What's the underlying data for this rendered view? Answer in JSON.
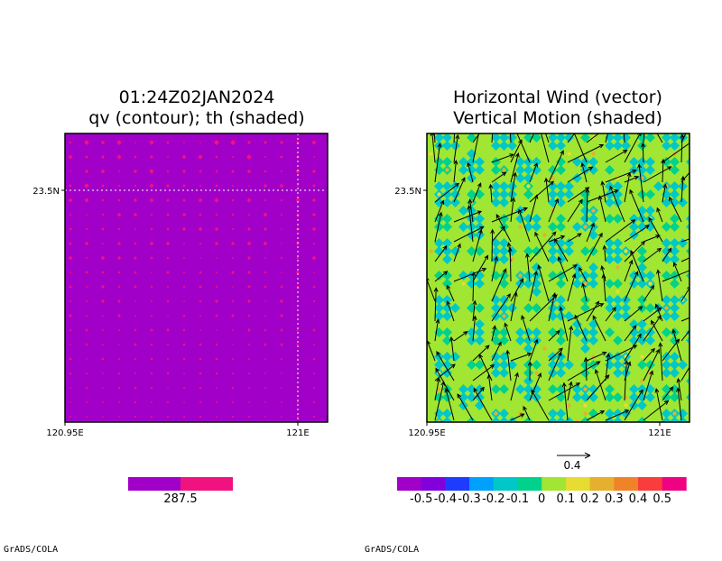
{
  "credits": [
    "GrADS/COLA",
    "GrADS/COLA"
  ],
  "chart_data": [
    {
      "type": "heatmap",
      "title_lines": [
        "01:24Z02JAN2024",
        "qv (contour); th (shaded)"
      ],
      "x_ticks": [
        {
          "value": 120.95,
          "label": "120.95E"
        },
        {
          "value": 121.0,
          "label": "121E"
        }
      ],
      "y_ticks": [
        {
          "value": 23.5,
          "label": "23.5N"
        }
      ],
      "xlim": [
        120.95,
        121.005
      ],
      "ylim": [
        23.44,
        23.52
      ],
      "grid": "dotted",
      "colorbar": {
        "colors": [
          "#a000c8",
          "#f0127f"
        ],
        "labels": [
          "287.5"
        ]
      }
    },
    {
      "type": "heatmap",
      "title_lines": [
        "Horizontal Wind (vector)",
        "Vertical Motion (shaded)"
      ],
      "x_ticks": [
        {
          "value": 120.95,
          "label": "120.95E"
        },
        {
          "value": 121.0,
          "label": "121E"
        }
      ],
      "y_ticks": [
        {
          "value": 23.5,
          "label": "23.5N"
        }
      ],
      "xlim": [
        120.95,
        121.005
      ],
      "ylim": [
        23.44,
        23.52
      ],
      "vector_reference": "0.4",
      "colorbar": {
        "colors": [
          "#a000c8",
          "#8200dc",
          "#1e3cff",
          "#00a0ff",
          "#00c8c8",
          "#00d28c",
          "#a0e632",
          "#e6dc32",
          "#e6af2d",
          "#f08228",
          "#fa3c3c",
          "#f00082"
        ],
        "labels": [
          "-0.5",
          "-0.4",
          "-0.3",
          "-0.2",
          "-0.1",
          "0",
          "0.1",
          "0.2",
          "0.3",
          "0.4",
          "0.5"
        ]
      }
    }
  ]
}
